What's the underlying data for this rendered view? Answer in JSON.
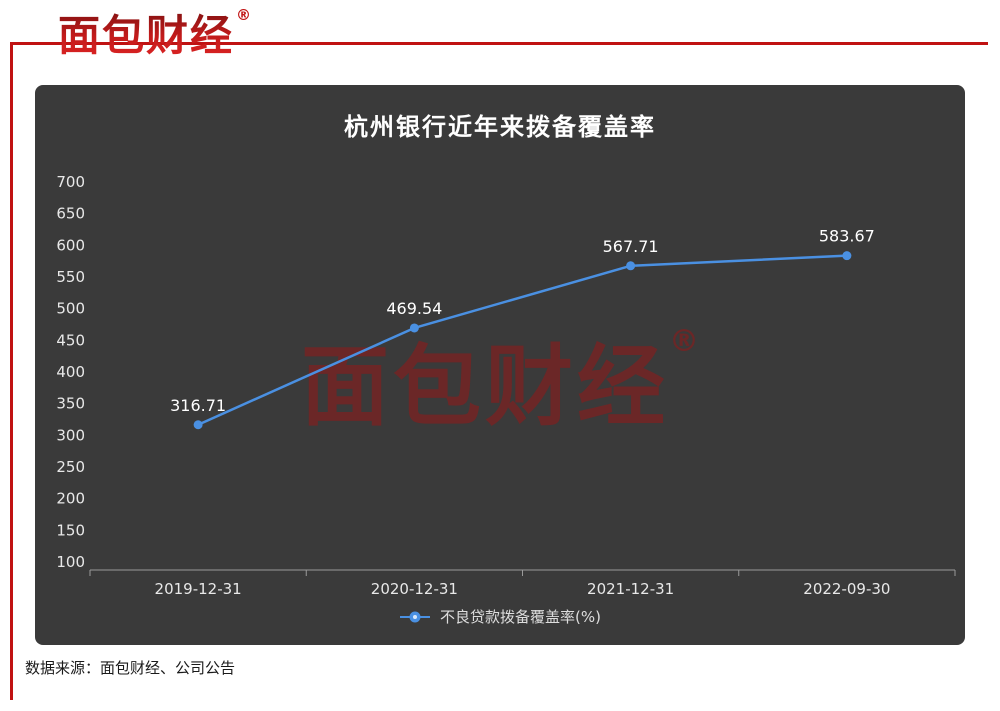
{
  "colors": {
    "accent": "#c01212",
    "panel_background": "#3a3a3a",
    "line": "#4a90e2",
    "axis": "#9a9a9a",
    "text_light": "#e8e8e8",
    "data_label": "#ffffff"
  },
  "header": {
    "logo_text": "面包财经",
    "registered_mark": "®"
  },
  "watermark": {
    "text": "面包财经",
    "registered_mark": "®"
  },
  "chart_data": {
    "type": "line",
    "title": "杭州银行近年来拨备覆盖率",
    "categories": [
      "2019-12-31",
      "2020-12-31",
      "2021-12-31",
      "2022-09-30"
    ],
    "series": [
      {
        "name": "不良贷款拨备覆盖率(%)",
        "values": [
          316.71,
          469.54,
          567.71,
          583.67
        ]
      }
    ],
    "ylim": [
      100,
      700
    ],
    "ytick_step": 50,
    "grid": false,
    "legend_position": "bottom",
    "data_labels": true
  },
  "footer": {
    "source_text": "数据来源：面包财经、公司公告"
  }
}
